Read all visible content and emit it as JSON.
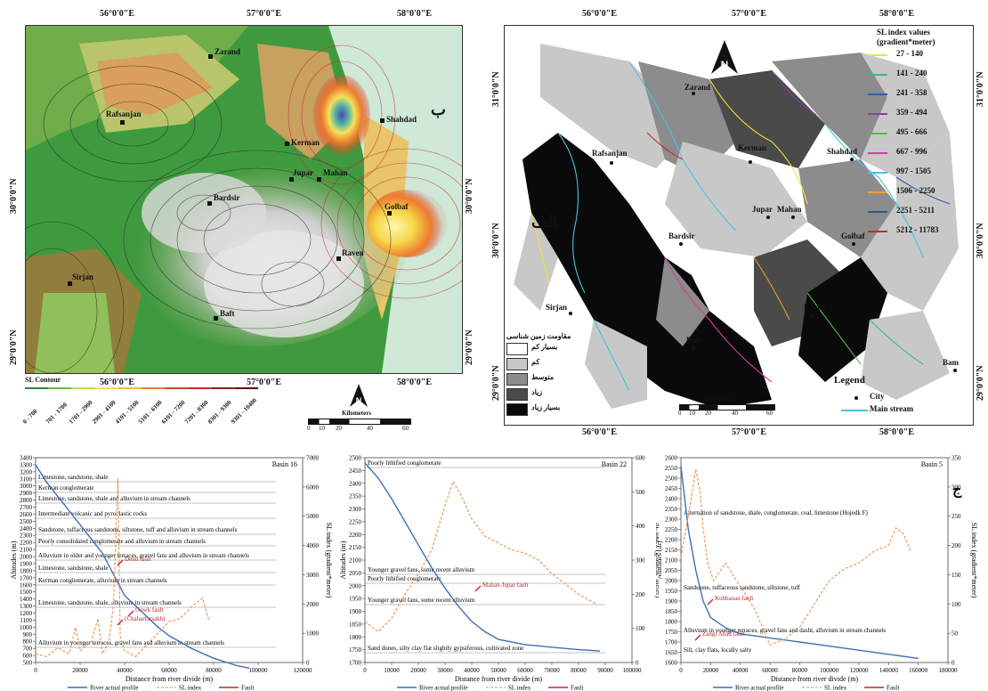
{
  "top_coords": [
    "56°0'0\"E",
    "57°0'0\"E",
    "58°0'0\"E"
  ],
  "bottom_coords": [
    "56°0'0\"E",
    "57°0'0\"E",
    "58°0'0\"E"
  ],
  "left_lat": [
    "30°0'0\"N",
    "29°0'0\"N"
  ],
  "right_lat": [
    "31°0'0\"N",
    "30°0'0\"N",
    "29°0'0\"N"
  ],
  "left_map": {
    "letter": "ب",
    "cities": [
      "Zarand",
      "Rafsanjan",
      "Shahdad",
      "Kerman",
      "Jupar",
      "Mahan",
      "Bardsir",
      "Golbaf",
      "Raven",
      "Sirjan",
      "Baft"
    ],
    "legend_title": "SL Contour",
    "legend_classes": [
      "0 - 700",
      "701 - 1700",
      "1701 - 2900",
      "2901 - 4100",
      "4101 - 5100",
      "5101 - 6100",
      "6101 - 7200",
      "7201 - 8300",
      "8301 - 9300",
      "9301 - 10400"
    ],
    "legend_colors": [
      "#2a8a3a",
      "#6fb83f",
      "#c8d84a",
      "#f2e25a",
      "#f5b93f",
      "#ee7c2f",
      "#d9402a",
      "#c12a2a",
      "#8f1d1d",
      "#5a0f0f"
    ],
    "scale_title": "Kilometers",
    "scale_ticks": [
      "0",
      "10",
      "20",
      "40",
      "60"
    ]
  },
  "right_map": {
    "letter": "الف",
    "cities": [
      "Zarand",
      "Rafsanjan",
      "Shahdad",
      "Kerman",
      "Jupar",
      "Mahan",
      "Bardsir",
      "Golbaf",
      "Raven",
      "Sirjan",
      "Baft",
      "Bam"
    ],
    "sl_title_1": "SL index values",
    "sl_title_2": "(gradient*meter)",
    "sl_classes": [
      {
        "label": "27 - 140",
        "color": "#f2e23a"
      },
      {
        "label": "141 - 240",
        "color": "#3bb3a3"
      },
      {
        "label": "241 - 358",
        "color": "#2a5fae"
      },
      {
        "label": "359 - 494",
        "color": "#8a3fa6"
      },
      {
        "label": "495 - 666",
        "color": "#55b84a"
      },
      {
        "label": "667 - 996",
        "color": "#d23fa0"
      },
      {
        "label": "997 - 1505",
        "color": "#49c1e0"
      },
      {
        "label": "1506 - 2250",
        "color": "#f0a030"
      },
      {
        "label": "2251 - 5211",
        "color": "#2f5a8a"
      },
      {
        "label": "5212 - 11783",
        "color": "#c82828"
      }
    ],
    "resistance_title": "مقاومت زمین شناسی",
    "resistance_classes": [
      {
        "label": "بسیار کم",
        "color": "#ffffff"
      },
      {
        "label": "کم",
        "color": "#c8c8c8"
      },
      {
        "label": "متوسط",
        "color": "#8c8c8c"
      },
      {
        "label": "زیاد",
        "color": "#4a4a4a"
      },
      {
        "label": "بسیار زیاد",
        "color": "#0a0a0a"
      }
    ],
    "scale_title": "Kilometers",
    "scale_ticks": [
      "0",
      "10",
      "20",
      "40",
      "60"
    ],
    "legend_title": "Legend",
    "legend_city": "City",
    "legend_stream": "Main stream"
  },
  "chart_data": [
    {
      "type": "line",
      "title": "Basin 16",
      "xlabel": "Distance from river divide (m)",
      "ylabel": "Altitudes (m)",
      "y2label": "SL index (gradient*meter)",
      "xlim": [
        0,
        120000
      ],
      "ylim": [
        500,
        3400
      ],
      "y2lim": [
        0,
        7000
      ],
      "x_ticks": [
        "0",
        "20000",
        "40000",
        "60000",
        "80000",
        "100000",
        "120000"
      ],
      "y_ticks": [
        "500",
        "600",
        "700",
        "800",
        "900",
        "1000",
        "1100",
        "1200",
        "1300",
        "1400",
        "1500",
        "1600",
        "1700",
        "1800",
        "1900",
        "2000",
        "2100",
        "2200",
        "2300",
        "2400",
        "2500",
        "2600",
        "2700",
        "2800",
        "2900",
        "3000",
        "3100",
        "3200",
        "3300",
        "3400"
      ],
      "y2_ticks": [
        "0",
        "1000",
        "2000",
        "3000",
        "4000",
        "5000",
        "6000",
        "7000"
      ],
      "series": [
        {
          "name": "River actual profile",
          "x": [
            0,
            5000,
            10000,
            15000,
            20000,
            25000,
            30000,
            35000,
            40000,
            45000,
            50000,
            55000,
            60000,
            70000,
            80000,
            90000,
            96000
          ],
          "y": [
            3300,
            3050,
            2850,
            2650,
            2450,
            2250,
            2050,
            1750,
            1450,
            1300,
            1150,
            1000,
            880,
            700,
            560,
            460,
            420
          ]
        },
        {
          "name": "SL index",
          "x": [
            0,
            5000,
            10000,
            15000,
            18000,
            20000,
            25000,
            28000,
            30000,
            33000,
            35000,
            37000,
            38000,
            40000,
            45000,
            50000,
            55000,
            60000,
            65000,
            70000,
            75000,
            78000
          ],
          "y": [
            300,
            200,
            500,
            300,
            1200,
            400,
            700,
            1500,
            300,
            700,
            2000,
            6300,
            900,
            400,
            200,
            600,
            1000,
            1400,
            1500,
            1900,
            2200,
            1400
          ]
        }
      ],
      "annotations": [
        "Limestone, sandstone, shale",
        "Kerman conglomerate",
        "Limestone, sandstone, shale and alluvium in stream channels",
        "Intermediate volcanic and pyroclastic rocks",
        "Sandstone, tuffaceous sandstone, siltstone, tuff and alluvium in stream channels",
        "Poorly consolidated conglomerate and alluvium in stream channels",
        "Alluvium in older and younger terraces, gravel fans and alluvium in stream channels",
        "Limestone, sandstone, shale",
        "Kerman conglomerate, alluvium in stream channels",
        "Limestone, sandstone, shale, alluvium in stream channels",
        "Alluvium in younger terraces, gravel fans and alluvium in stream channels"
      ],
      "faults": [
        "Dehu fault",
        "Gowk fault",
        "(Chaharfarsakh)"
      ],
      "legend": [
        "River actual profile",
        "SL index",
        "Fault"
      ]
    },
    {
      "type": "line",
      "title": "Basin 22",
      "xlabel": "Distance from river divide (m)",
      "ylabel": "Altitudes (m)",
      "y2label": "SL index (gradient*meter)",
      "xlim": [
        0,
        100000
      ],
      "ylim": [
        1700,
        2500
      ],
      "y2lim": [
        0,
        600
      ],
      "x_ticks": [
        "0",
        "10000",
        "20000",
        "30000",
        "40000",
        "50000",
        "60000",
        "70000",
        "80000",
        "90000",
        "100000"
      ],
      "y_ticks": [
        "1700",
        "1750",
        "1800",
        "1850",
        "1900",
        "1950",
        "2000",
        "2050",
        "2100",
        "2150",
        "2200",
        "2250",
        "2300",
        "2350",
        "2400",
        "2450",
        "2500"
      ],
      "y2_ticks": [
        "0",
        "100",
        "200",
        "300",
        "400",
        "500",
        "600"
      ],
      "series": [
        {
          "name": "River actual profile",
          "x": [
            0,
            5000,
            10000,
            15000,
            20000,
            25000,
            30000,
            35000,
            40000,
            45000,
            50000,
            60000,
            70000,
            80000,
            88000
          ],
          "y": [
            2480,
            2420,
            2340,
            2250,
            2160,
            2070,
            1990,
            1920,
            1860,
            1820,
            1790,
            1770,
            1760,
            1750,
            1745
          ]
        },
        {
          "name": "SL index",
          "x": [
            0,
            5000,
            10000,
            15000,
            20000,
            25000,
            30000,
            33000,
            36000,
            40000,
            45000,
            50000,
            55000,
            60000,
            65000,
            70000,
            75000,
            80000,
            87000
          ],
          "y": [
            120,
            90,
            130,
            200,
            260,
            330,
            460,
            530,
            490,
            420,
            370,
            350,
            330,
            320,
            300,
            260,
            230,
            200,
            170
          ]
        }
      ],
      "annotations": [
        "Poorly lithified conglomerate",
        "Younger gravel fans, some recent alluvium",
        "Poorly lithified conglomerate",
        "Younger gravel fans, some recent alluvium",
        "Sand dunes, silty clay flat slightly gypsiferous, cultivated zone"
      ],
      "faults": [
        "Mahan-Jupar fault"
      ],
      "legend": [
        "River actual profile",
        "SL index",
        "Fault"
      ]
    },
    {
      "type": "line",
      "title": "Basin 5",
      "xlabel": "Distance from river divide (m)",
      "ylabel": "Altitudes (m)",
      "y2label": "SL index (gradient*meter)",
      "xlim": [
        0,
        180000
      ],
      "ylim": [
        1600,
        2600
      ],
      "y2lim": [
        0,
        350
      ],
      "x_ticks": [
        "0",
        "20000",
        "40000",
        "60000",
        "80000",
        "100000",
        "120000",
        "140000",
        "160000",
        "180000"
      ],
      "y_ticks": [
        "1600",
        "1650",
        "1700",
        "1750",
        "1800",
        "1850",
        "1900",
        "1950",
        "2000",
        "2050",
        "2100",
        "2150",
        "2200",
        "2250",
        "2300",
        "2350",
        "2400",
        "2450",
        "2500",
        "2550",
        "2600"
      ],
      "y2_ticks": [
        "0",
        "50",
        "100",
        "150",
        "200",
        "250",
        "300",
        "350"
      ],
      "series": [
        {
          "name": "River actual profile",
          "x": [
            0,
            5000,
            10000,
            15000,
            20000,
            30000,
            40000,
            60000,
            80000,
            100000,
            120000,
            140000,
            160000
          ],
          "y": [
            2560,
            2250,
            2050,
            1900,
            1820,
            1770,
            1740,
            1720,
            1700,
            1680,
            1660,
            1640,
            1620
          ]
        },
        {
          "name": "SL index",
          "x": [
            0,
            5000,
            10000,
            13000,
            15000,
            18000,
            22000,
            30000,
            40000,
            50000,
            60000,
            70000,
            80000,
            90000,
            100000,
            110000,
            120000,
            130000,
            140000,
            145000,
            150000,
            155000
          ],
          "y": [
            180,
            250,
            330,
            290,
            230,
            170,
            140,
            170,
            130,
            90,
            30,
            40,
            60,
            100,
            140,
            160,
            170,
            190,
            200,
            230,
            220,
            190
          ]
        }
      ],
      "annotations": [
        "Alternation of sandstone, shale, conglomerate, coal, limestone (Hojedk F)",
        "Sandstone, tuffaceous sandstone, siltstone, tuff",
        "Alluvium in younger terraces, gravel fans and dasht, alluvium in stream channels",
        "Silt, clay flats, locally salty"
      ],
      "faults": [
        "Kuhbanan fault",
        "Zangi Abad fault"
      ],
      "legend": [
        "River actual profile",
        "SL index",
        "Fault"
      ]
    }
  ],
  "panel_letter_charts": "ج"
}
